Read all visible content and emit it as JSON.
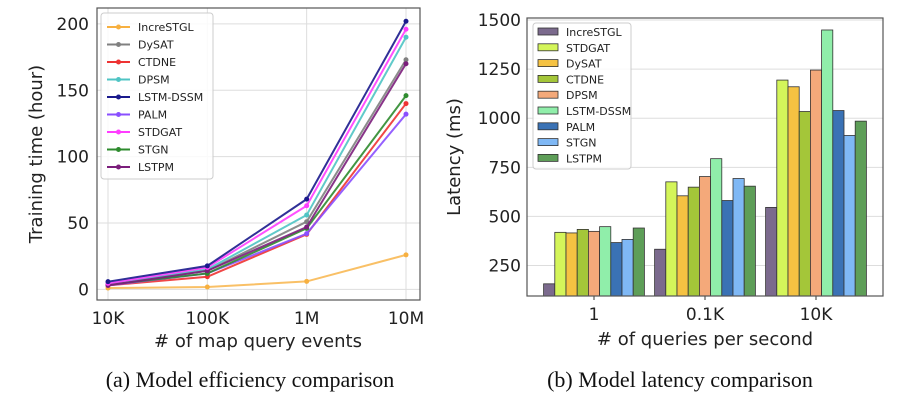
{
  "chart_data": [
    {
      "type": "line",
      "xlabel": "# of map query events",
      "ylabel": "Training time (hour)",
      "caption": "(a) Model efficiency comparison",
      "categories": [
        "10K",
        "100K",
        "1M",
        "10M"
      ],
      "ylim": [
        -8,
        212
      ],
      "yticks": [
        0,
        50,
        100,
        150,
        200
      ],
      "grid": true,
      "legend": "top-left",
      "series": [
        {
          "name": "IncreSTGL",
          "color": "#f7b040",
          "values": [
            1,
            1.8,
            6,
            26
          ]
        },
        {
          "name": "DySAT",
          "color": "#808080",
          "values": [
            3.5,
            14,
            51,
            173
          ]
        },
        {
          "name": "CTDNE",
          "color": "#ee3333",
          "values": [
            3,
            9.5,
            41.5,
            140
          ]
        },
        {
          "name": "DPSM",
          "color": "#4fc4c4",
          "values": [
            4,
            15,
            56,
            190
          ]
        },
        {
          "name": "LSTM-DSSM",
          "color": "#1a1a8c",
          "values": [
            5.8,
            17.7,
            68,
            202
          ]
        },
        {
          "name": "PALM",
          "color": "#8a4fff",
          "values": [
            3,
            12,
            42,
            132
          ]
        },
        {
          "name": "STDGAT",
          "color": "#ff3dff",
          "values": [
            4.5,
            16.5,
            63,
            196
          ]
        },
        {
          "name": "STGN",
          "color": "#2e8b2e",
          "values": [
            3.5,
            12,
            46,
            146
          ]
        },
        {
          "name": "LSTPM",
          "color": "#7b1e7b",
          "values": [
            3,
            14,
            47,
            170
          ]
        }
      ]
    },
    {
      "type": "bar",
      "xlabel": "# of queries per second",
      "ylabel": "Latency (ms)",
      "caption": "(b) Model latency comparison",
      "categories": [
        "1",
        "0.1K",
        "10K"
      ],
      "ylim": [
        95,
        1510
      ],
      "yticks": [
        250,
        500,
        750,
        1000,
        1250,
        1500
      ],
      "grid": true,
      "legend": "top-left",
      "series": [
        {
          "name": "IncreSTGL",
          "color": "#7b6a8d",
          "values": [
            157,
            333,
            546
          ]
        },
        {
          "name": "STDGAT",
          "color": "#d4f55a",
          "values": [
            419,
            676,
            1194
          ]
        },
        {
          "name": "DySAT",
          "color": "#f5c242",
          "values": [
            416,
            605,
            1160
          ]
        },
        {
          "name": "CTDNE",
          "color": "#a4c639",
          "values": [
            434,
            649,
            1034
          ]
        },
        {
          "name": "DPSM",
          "color": "#f4a97a",
          "values": [
            424,
            703,
            1245
          ]
        },
        {
          "name": "LSTM-DSSM",
          "color": "#90eeaa",
          "values": [
            448,
            794,
            1449
          ]
        },
        {
          "name": "PALM",
          "color": "#3a72b5",
          "values": [
            367,
            581,
            1039
          ]
        },
        {
          "name": "STGN",
          "color": "#7fb8f5",
          "values": [
            383,
            693,
            912
          ]
        },
        {
          "name": "LSTPM",
          "color": "#5e9e58",
          "values": [
            441,
            654,
            985
          ]
        }
      ]
    }
  ]
}
